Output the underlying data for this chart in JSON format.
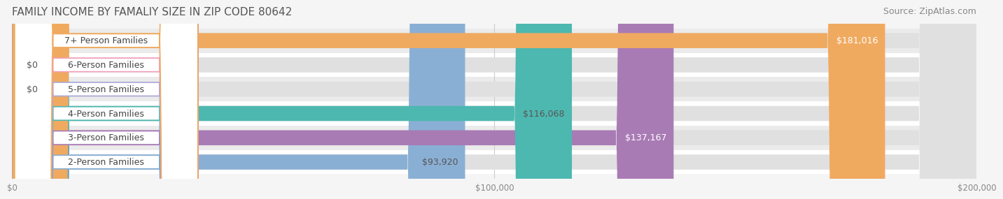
{
  "title": "FAMILY INCOME BY FAMALIY SIZE IN ZIP CODE 80642",
  "source": "Source: ZipAtlas.com",
  "categories": [
    "2-Person Families",
    "3-Person Families",
    "4-Person Families",
    "5-Person Families",
    "6-Person Families",
    "7+ Person Families"
  ],
  "values": [
    93920,
    137167,
    116068,
    0,
    0,
    181016
  ],
  "bar_colors": [
    "#8aafd4",
    "#a97bb5",
    "#4db8b0",
    "#a8a8d8",
    "#f4a0b8",
    "#f0aa60"
  ],
  "label_colors": [
    "#555555",
    "#ffffff",
    "#555555",
    "#555555",
    "#555555",
    "#ffffff"
  ],
  "value_labels": [
    "$93,920",
    "$137,167",
    "$116,068",
    "$0",
    "$0",
    "$181,016"
  ],
  "xlim": [
    0,
    200000
  ],
  "xticks": [
    0,
    100000,
    200000
  ],
  "xtick_labels": [
    "$0",
    "$100,000",
    "$200,000"
  ],
  "background_color": "#f0f0f0",
  "bar_bg_color": "#e8e8e8",
  "title_fontsize": 11,
  "source_fontsize": 9,
  "label_fontsize": 9,
  "value_fontsize": 9,
  "bar_height": 0.62,
  "fig_width": 14.06,
  "fig_height": 3.05
}
